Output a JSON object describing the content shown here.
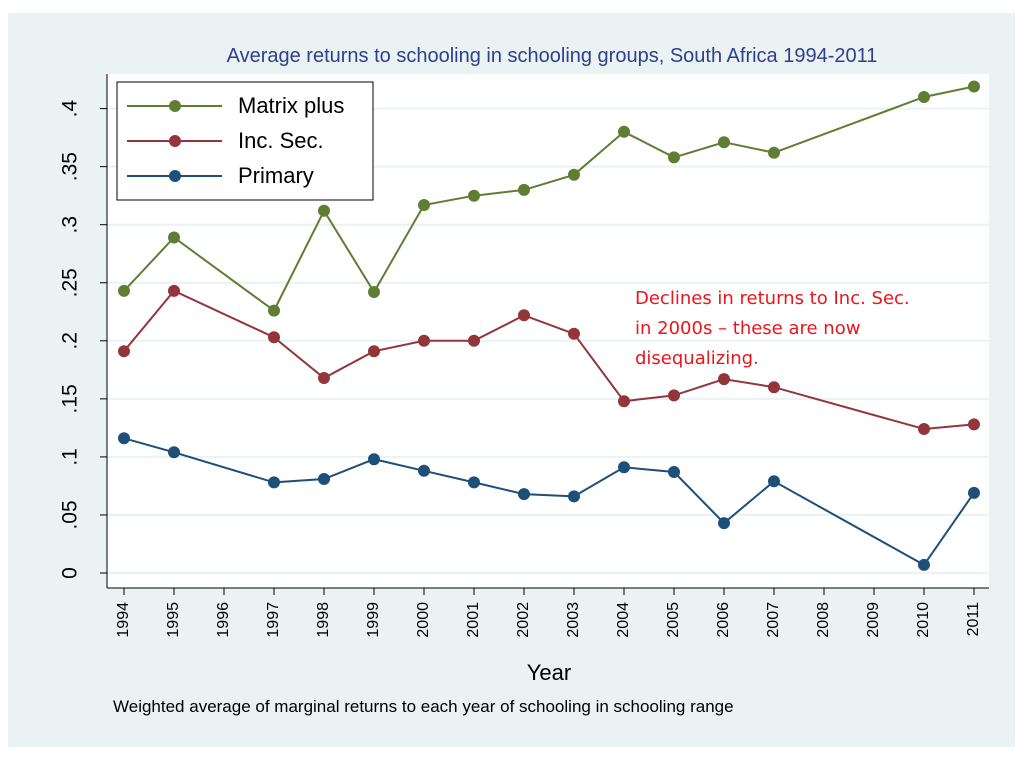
{
  "chart_data": {
    "type": "line",
    "title": "Average returns to schooling in schooling groups, South Africa 1994-2011",
    "xlabel": "Year",
    "ylabel": "",
    "note": "Weighted average of marginal returns to each year of schooling in schooling range",
    "annotation": {
      "lines": [
        "Declines in returns to Inc. Sec.",
        "in 2000s – these are now",
        "disequalizing."
      ],
      "color": "#e8161b"
    },
    "x_ticks": [
      1994,
      1995,
      1996,
      1997,
      1998,
      1999,
      2000,
      2001,
      2002,
      2003,
      2004,
      2005,
      2006,
      2007,
      2008,
      2009,
      2010,
      2011
    ],
    "y_ticks": [
      0,
      0.05,
      0.1,
      0.15,
      0.2,
      0.25,
      0.3,
      0.35,
      0.4
    ],
    "y_tick_labels": [
      "0",
      ".05",
      ".1",
      ".15",
      ".2",
      ".25",
      ".3",
      ".35",
      ".4"
    ],
    "xlim": [
      1994,
      2011
    ],
    "ylim": [
      0,
      0.4
    ],
    "grid": true,
    "legend_position": "top-left",
    "colors": {
      "outer_background": "#eaf2f3",
      "plot_background": "#ffffff",
      "grid": "#eaf2f3"
    },
    "series": [
      {
        "name": "Matrix plus",
        "color": "#5e7f33",
        "points": [
          [
            1994,
            0.243
          ],
          [
            1995,
            0.289
          ],
          [
            1997,
            0.226
          ],
          [
            1998,
            0.312
          ],
          [
            1999,
            0.242
          ],
          [
            2000,
            0.317
          ],
          [
            2001,
            0.325
          ],
          [
            2002,
            0.33
          ],
          [
            2003,
            0.343
          ],
          [
            2004,
            0.38
          ],
          [
            2005,
            0.358
          ],
          [
            2006,
            0.371
          ],
          [
            2007,
            0.362
          ],
          [
            2010,
            0.41
          ],
          [
            2011,
            0.419
          ]
        ]
      },
      {
        "name": "Inc. Sec.",
        "color": "#93363c",
        "points": [
          [
            1994,
            0.191
          ],
          [
            1995,
            0.243
          ],
          [
            1997,
            0.203
          ],
          [
            1998,
            0.168
          ],
          [
            1999,
            0.191
          ],
          [
            2000,
            0.2
          ],
          [
            2001,
            0.2
          ],
          [
            2002,
            0.222
          ],
          [
            2003,
            0.206
          ],
          [
            2004,
            0.148
          ],
          [
            2005,
            0.153
          ],
          [
            2006,
            0.167
          ],
          [
            2007,
            0.16
          ],
          [
            2010,
            0.124
          ],
          [
            2011,
            0.128
          ]
        ]
      },
      {
        "name": "Primary",
        "color": "#1d4f78",
        "points": [
          [
            1994,
            0.116
          ],
          [
            1995,
            0.104
          ],
          [
            1997,
            0.078
          ],
          [
            1998,
            0.081
          ],
          [
            1999,
            0.098
          ],
          [
            2000,
            0.088
          ],
          [
            2001,
            0.078
          ],
          [
            2002,
            0.068
          ],
          [
            2003,
            0.066
          ],
          [
            2004,
            0.091
          ],
          [
            2005,
            0.087
          ],
          [
            2006,
            0.043
          ],
          [
            2007,
            0.079
          ],
          [
            2010,
            0.007
          ],
          [
            2011,
            0.069
          ]
        ]
      }
    ]
  }
}
